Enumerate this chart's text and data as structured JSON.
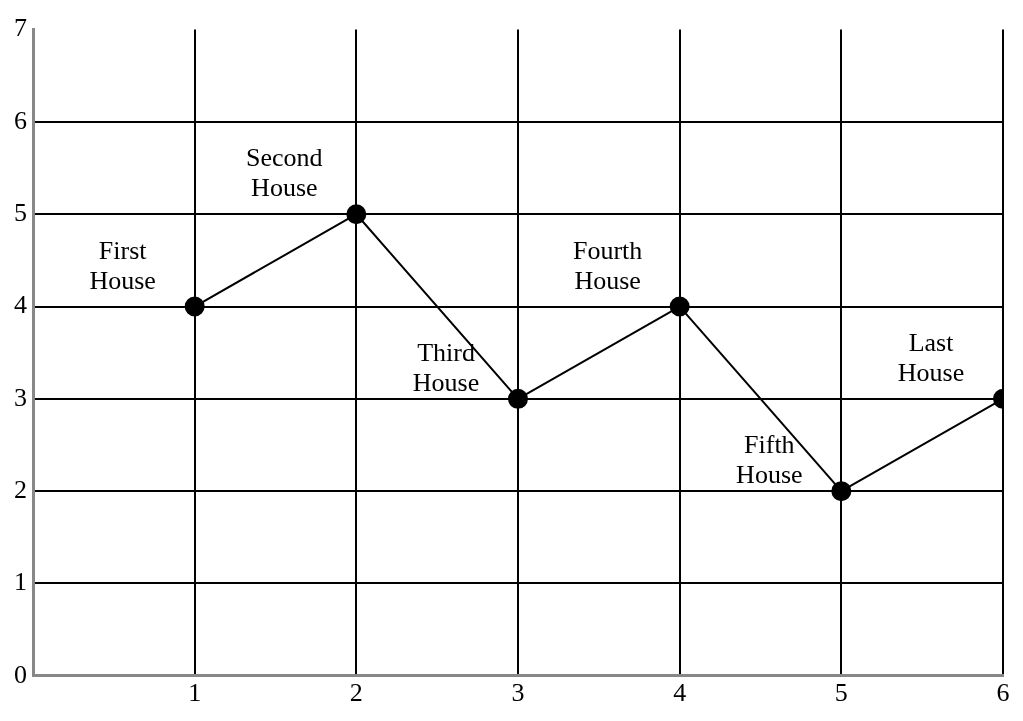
{
  "chart_data": {
    "type": "line",
    "x": [
      1,
      2,
      3,
      4,
      5,
      6
    ],
    "series": [
      {
        "color": "#000000",
        "values": [
          4,
          5,
          3,
          4,
          2,
          3
        ]
      }
    ],
    "xlim": [
      0,
      6
    ],
    "xticks": [
      1,
      2,
      3,
      4,
      5,
      6
    ],
    "ylim": [
      0,
      7
    ],
    "yticks": [
      0,
      1,
      2,
      3,
      4,
      5,
      6,
      7
    ],
    "grid": true,
    "legend": false,
    "marker": "circle",
    "line_style": "solid",
    "annotations": [
      {
        "text": "First\nHouse",
        "x": 1,
        "y": 4
      },
      {
        "text": "Second\nHouse",
        "x": 2,
        "y": 5
      },
      {
        "text": "Third\nHouse",
        "x": 3,
        "y": 3
      },
      {
        "text": "Fourth\nHouse",
        "x": 4,
        "y": 4
      },
      {
        "text": "Fifth\nHouse",
        "x": 5,
        "y": 2
      },
      {
        "text": "Last\nHouse",
        "x": 6,
        "y": 3
      }
    ]
  }
}
